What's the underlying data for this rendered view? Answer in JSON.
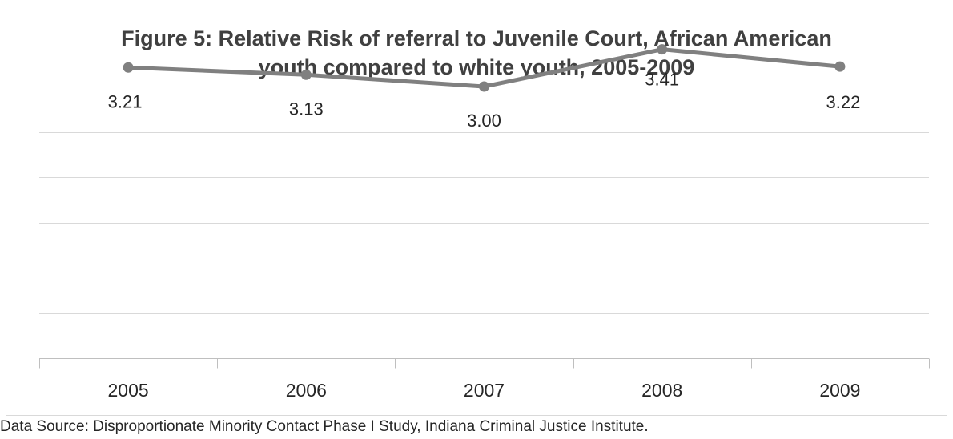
{
  "chart_data": {
    "type": "line",
    "title": "Figure 5: Relative Risk of referral to Juvenile Court, African American youth compared to white youth, 2005-2009",
    "title_lines": [
      "Figure 5: Relative Risk of referral to Juvenile Court, African American",
      "youth compared to white youth, 2005-2009"
    ],
    "categories": [
      "2005",
      "2006",
      "2007",
      "2008",
      "2009"
    ],
    "series": [
      {
        "values": [
          3.21,
          3.13,
          3.0,
          3.41,
          3.22
        ],
        "labels": [
          "3.21",
          "3.13",
          "3.00",
          "3.41",
          "3.22"
        ],
        "color": "#808080"
      }
    ],
    "xlabel": "",
    "ylabel": "",
    "ylim": [
      0,
      4.5
    ],
    "y_gridline_step": 0.5,
    "y_tick_labels_shown": false,
    "grid": true,
    "gridline_color": "#d9d9d9",
    "axis_color": "#bfbfbf",
    "label_color": "#262626"
  },
  "source_note": "Data Source: Disproportionate Minority Contact Phase I Study, Indiana Criminal Justice Institute."
}
